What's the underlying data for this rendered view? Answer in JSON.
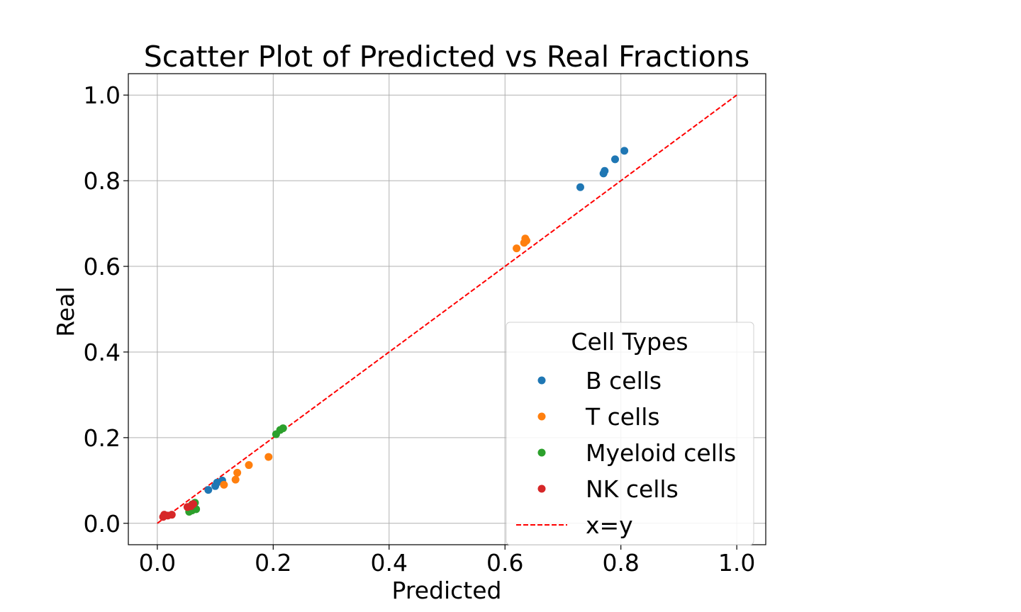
{
  "chart_data": {
    "type": "scatter",
    "title": "Scatter Plot of Predicted vs Real Fractions",
    "xlabel": "Predicted",
    "ylabel": "Real",
    "xlim": [
      -0.05,
      1.05
    ],
    "ylim": [
      -0.05,
      1.05
    ],
    "xticks": [
      0.0,
      0.2,
      0.4,
      0.6,
      0.8,
      1.0
    ],
    "yticks": [
      0.0,
      0.2,
      0.4,
      0.6,
      0.8,
      1.0
    ],
    "xtick_labels": [
      "0.0",
      "0.2",
      "0.4",
      "0.6",
      "0.8",
      "1.0"
    ],
    "ytick_labels": [
      "0.0",
      "0.2",
      "0.4",
      "0.6",
      "0.8",
      "1.0"
    ],
    "grid": true,
    "legend": {
      "title": "Cell Types",
      "placement": "lower-right"
    },
    "series": [
      {
        "name": "B cells",
        "color": "#1f77b4",
        "points": [
          [
            0.73,
            0.785
          ],
          [
            0.77,
            0.817
          ],
          [
            0.772,
            0.823
          ],
          [
            0.79,
            0.85
          ],
          [
            0.806,
            0.87
          ],
          [
            0.088,
            0.078
          ],
          [
            0.1,
            0.087
          ],
          [
            0.103,
            0.095
          ],
          [
            0.112,
            0.1
          ]
        ]
      },
      {
        "name": "T cells",
        "color": "#ff7f0e",
        "points": [
          [
            0.62,
            0.642
          ],
          [
            0.633,
            0.655
          ],
          [
            0.635,
            0.665
          ],
          [
            0.637,
            0.66
          ],
          [
            0.115,
            0.09
          ],
          [
            0.135,
            0.102
          ],
          [
            0.138,
            0.118
          ],
          [
            0.158,
            0.136
          ],
          [
            0.192,
            0.155
          ]
        ]
      },
      {
        "name": "Myeloid cells",
        "color": "#2ca02c",
        "points": [
          [
            0.205,
            0.208
          ],
          [
            0.212,
            0.218
          ],
          [
            0.217,
            0.222
          ],
          [
            0.055,
            0.027
          ],
          [
            0.06,
            0.03
          ],
          [
            0.067,
            0.033
          ],
          [
            0.06,
            0.044
          ],
          [
            0.065,
            0.048
          ]
        ]
      },
      {
        "name": "NK cells",
        "color": "#d62728",
        "points": [
          [
            0.01,
            0.015
          ],
          [
            0.012,
            0.02
          ],
          [
            0.018,
            0.018
          ],
          [
            0.025,
            0.02
          ],
          [
            0.052,
            0.038
          ],
          [
            0.058,
            0.04
          ],
          [
            0.062,
            0.045
          ]
        ]
      }
    ],
    "reference_line": {
      "name": "x=y",
      "color": "#ff0000",
      "style": "dashed",
      "points": [
        [
          0.0,
          0.0
        ],
        [
          1.0,
          1.0
        ]
      ]
    }
  }
}
